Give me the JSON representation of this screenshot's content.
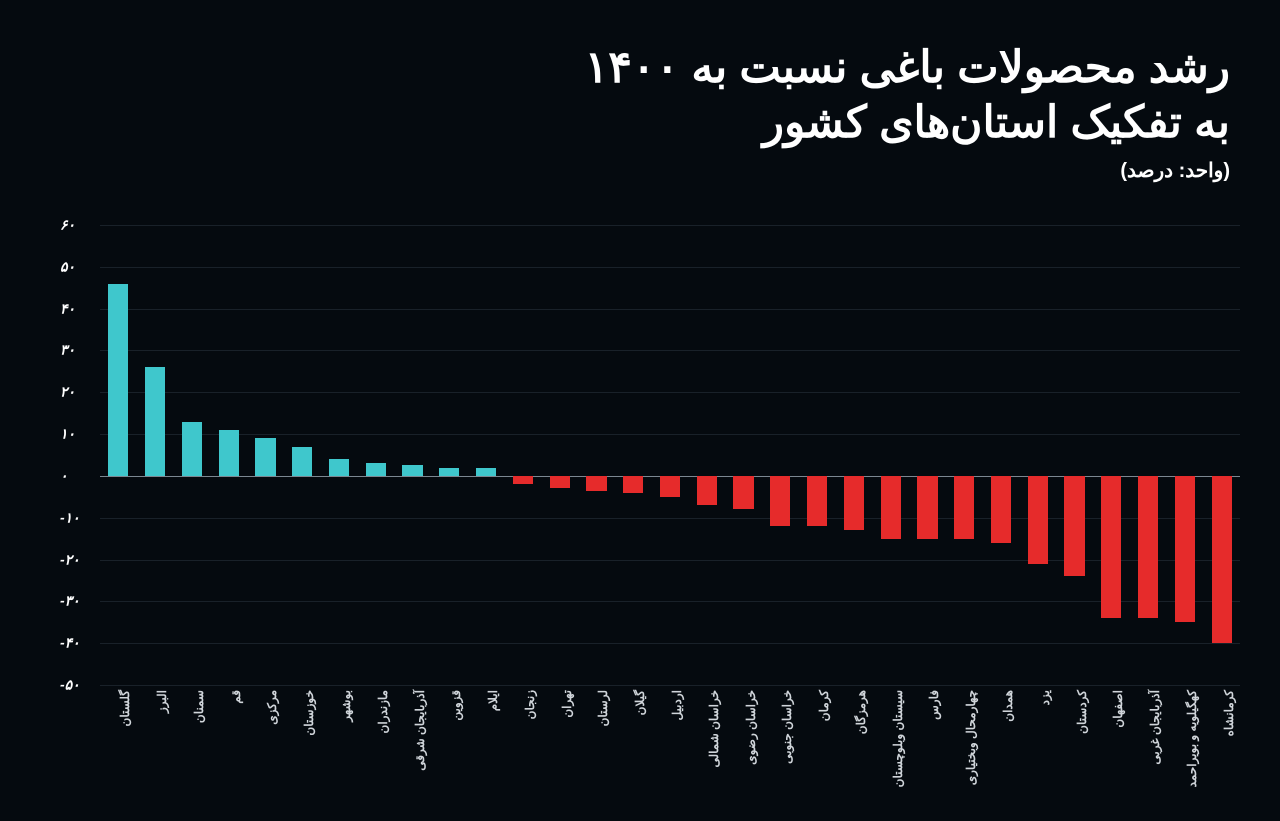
{
  "title": {
    "line1": "رشد محصولات باغی نسبت به ۱۴۰۰",
    "line2": "به تفکیک استان‌های کشور",
    "unit": "(واحد: درصد)",
    "fontsize_title": 44,
    "fontsize_unit": 20,
    "color": "#ffffff"
  },
  "chart": {
    "type": "bar",
    "background_color": "#050a0f",
    "grid_color": "#2a3540",
    "zero_line_color": "#8a95a0",
    "positive_color": "#3fc7cc",
    "negative_color": "#e62b2b",
    "ylabel": "",
    "ylim_min": -50,
    "ylim_max": 60,
    "ytick_step": 10,
    "yticks": [
      "۶۰",
      "۵۰",
      "۴۰",
      "۳۰",
      "۲۰",
      "۱۰",
      "۰",
      "-۱۰",
      "-۲۰",
      "-۳۰",
      "-۴۰",
      "-۵۰"
    ],
    "ytick_values": [
      60,
      50,
      40,
      30,
      20,
      10,
      0,
      -10,
      -20,
      -30,
      -40,
      -50
    ],
    "bar_width_ratio": 0.55,
    "label_fontsize": 12,
    "tick_fontsize": 14,
    "data": [
      {
        "label": "گلستان",
        "value": 46
      },
      {
        "label": "البرز",
        "value": 26
      },
      {
        "label": "سمنان",
        "value": 13
      },
      {
        "label": "قم",
        "value": 11
      },
      {
        "label": "مرکزی",
        "value": 9
      },
      {
        "label": "خوزستان",
        "value": 7
      },
      {
        "label": "بوشهر",
        "value": 4
      },
      {
        "label": "مازندران",
        "value": 3
      },
      {
        "label": "آذربایجان شرقی",
        "value": 2.5
      },
      {
        "label": "قزوین",
        "value": 2
      },
      {
        "label": "ایلام",
        "value": 2
      },
      {
        "label": "زنجان",
        "value": -2
      },
      {
        "label": "تهران",
        "value": -3
      },
      {
        "label": "لرستان",
        "value": -3.5
      },
      {
        "label": "گیلان",
        "value": -4
      },
      {
        "label": "اردبیل",
        "value": -5
      },
      {
        "label": "خراسان شمالی",
        "value": -7
      },
      {
        "label": "خراسان رضوی",
        "value": -8
      },
      {
        "label": "خراسان جنوبی",
        "value": -12
      },
      {
        "label": "کرمان",
        "value": -12
      },
      {
        "label": "هرمزگان",
        "value": -13
      },
      {
        "label": "سیستان وبلوچستان",
        "value": -15
      },
      {
        "label": "فارس",
        "value": -15
      },
      {
        "label": "چهارمحال وبختیاری",
        "value": -15
      },
      {
        "label": "همدان",
        "value": -16
      },
      {
        "label": "یزد",
        "value": -21
      },
      {
        "label": "کردستان",
        "value": -24
      },
      {
        "label": "اصفهان",
        "value": -34
      },
      {
        "label": "آذربایجان غربی",
        "value": -34
      },
      {
        "label": "کهگیلویه و بویراحمد",
        "value": -35
      },
      {
        "label": "کرمانشاه",
        "value": -40
      }
    ]
  }
}
